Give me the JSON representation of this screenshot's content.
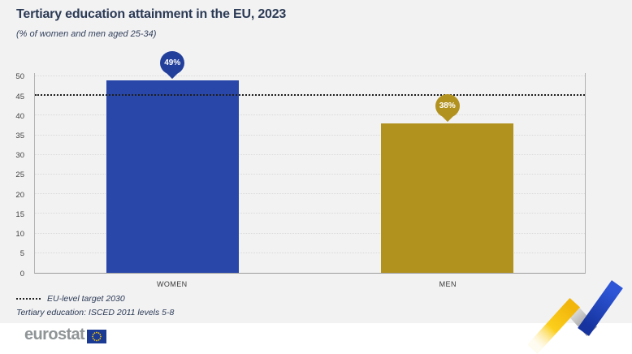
{
  "header": {
    "title": "Tertiary education attainment in the EU, 2023",
    "subtitle": "(% of women and men aged 25-34)"
  },
  "chart_data": {
    "type": "bar",
    "categories": [
      "WOMEN",
      "MEN"
    ],
    "values": [
      49,
      38
    ],
    "value_labels": [
      "49%",
      "38%"
    ],
    "bar_colors": [
      "#2847a8",
      "#b2921f"
    ],
    "badge_colors": [
      "#223f9c",
      "#b2921f"
    ],
    "target": {
      "value": 45,
      "label": "EU-level target 2030"
    },
    "title": "Tertiary education attainment in the EU, 2023",
    "subtitle": "(% of women and men aged 25-34)",
    "xlabel": "",
    "ylabel": "",
    "ylim": [
      0,
      50
    ],
    "yticks": [
      0,
      5,
      10,
      15,
      20,
      25,
      30,
      35,
      40,
      45,
      50
    ],
    "grid": true,
    "legend_position": "bottom-left"
  },
  "legend": {
    "target_label": "EU-level target 2030",
    "note": "Tertiary education: ISCED 2011 levels 5-8"
  },
  "footer": {
    "brand": "eurostat"
  },
  "colors": {
    "background": "#f2f2f3",
    "women_bar": "#2847a8",
    "men_bar": "#b2921f",
    "target_line": "#1f1f1f",
    "title_text": "#2b3a55",
    "brand_gray": "#8f9496",
    "flag_blue": "#1a3a94",
    "flag_star_yellow": "#ffcc00",
    "deco_yellow": "#f6c40e",
    "deco_blue": "#1e3cb4",
    "deco_gray": "#bcbcbc"
  }
}
